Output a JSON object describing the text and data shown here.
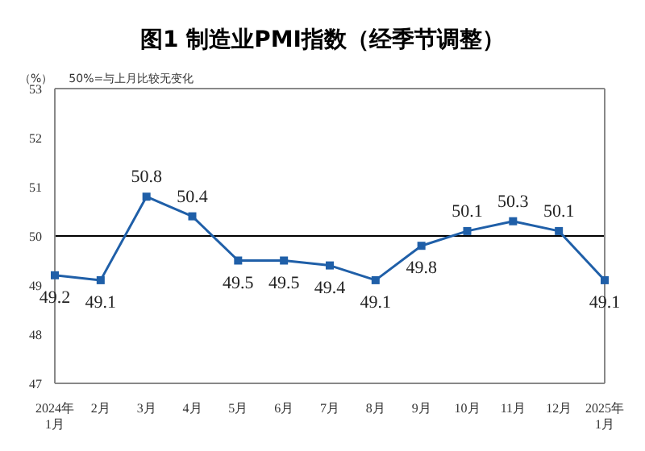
{
  "chart_data": {
    "type": "line",
    "title": "图1  制造业PMI指数（经季节调整）",
    "ylabel": "（%）",
    "annotations": [
      "50%=与上月比较无变化"
    ],
    "categories": [
      "2024年\n1月",
      "2月",
      "3月",
      "4月",
      "5月",
      "6月",
      "7月",
      "8月",
      "9月",
      "10月",
      "11月",
      "12月",
      "2025年\n1月"
    ],
    "series": [
      {
        "color": "#1f5fa8",
        "values": [
          49.2,
          49.1,
          50.8,
          50.4,
          49.5,
          49.5,
          49.4,
          49.1,
          49.8,
          50.1,
          50.3,
          50.1,
          49.1
        ]
      }
    ],
    "ylim": [
      47,
      53
    ],
    "yticks": [
      47,
      48,
      49,
      50,
      51,
      52,
      53
    ],
    "ref_lines": [
      {
        "axis": "y",
        "value": 50,
        "color": "#000000"
      }
    ],
    "data_labels": true,
    "marker": "square",
    "grid": false
  }
}
